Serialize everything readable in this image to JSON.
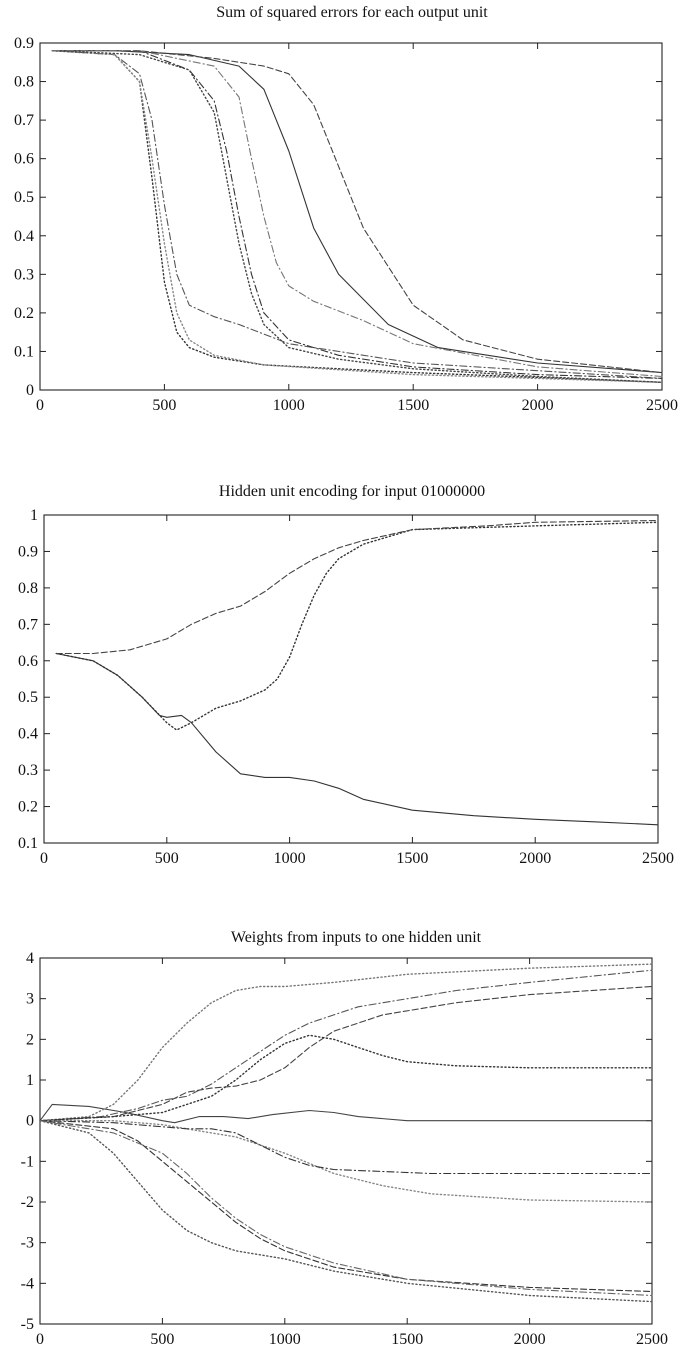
{
  "chart_data": [
    {
      "type": "line",
      "title": "Sum of squared errors for each output unit",
      "xlim": [
        0,
        2500
      ],
      "ylim": [
        0,
        0.9
      ],
      "xticks": [
        0,
        500,
        1000,
        1500,
        2000,
        2500
      ],
      "yticks": [
        0,
        0.1,
        0.2,
        0.3,
        0.4,
        0.5,
        0.6,
        0.7,
        0.8,
        0.9
      ],
      "xtick_labels": [
        "0",
        "500",
        "1000",
        "1500",
        "2000",
        "2500"
      ],
      "ytick_labels": [
        "0",
        "0.1",
        "0.2",
        "0.3",
        "0.4",
        "0.5",
        "0.6",
        "0.7",
        "0.8",
        "0.9"
      ],
      "series": [
        {
          "style": "solid",
          "color": "#333333",
          "x": [
            50,
            300,
            600,
            800,
            900,
            1000,
            1100,
            1200,
            1400,
            1600,
            2000,
            2500
          ],
          "y": [
            0.88,
            0.88,
            0.87,
            0.84,
            0.78,
            0.62,
            0.42,
            0.3,
            0.17,
            0.11,
            0.07,
            0.045
          ]
        },
        {
          "style": "dashed",
          "color": "#444444",
          "x": [
            50,
            400,
            700,
            900,
            1000,
            1100,
            1200,
            1300,
            1500,
            1700,
            2000,
            2500
          ],
          "y": [
            0.88,
            0.88,
            0.86,
            0.84,
            0.82,
            0.74,
            0.58,
            0.42,
            0.22,
            0.13,
            0.08,
            0.045
          ]
        },
        {
          "style": "dotted",
          "color": "#333333",
          "x": [
            50,
            300,
            400,
            450,
            500,
            550,
            600,
            700,
            900,
            1500,
            2500
          ],
          "y": [
            0.88,
            0.87,
            0.8,
            0.55,
            0.28,
            0.15,
            0.11,
            0.085,
            0.065,
            0.045,
            0.02
          ]
        },
        {
          "style": "dashdot",
          "color": "#555555",
          "x": [
            50,
            300,
            400,
            450,
            500,
            550,
            600,
            700,
            800,
            1000,
            1500,
            2500
          ],
          "y": [
            0.88,
            0.87,
            0.82,
            0.7,
            0.48,
            0.3,
            0.22,
            0.19,
            0.17,
            0.12,
            0.07,
            0.03
          ]
        },
        {
          "style": "dotted",
          "color": "#888888",
          "x": [
            50,
            300,
            400,
            450,
            500,
            550,
            600,
            700,
            900,
            1500,
            2500
          ],
          "y": [
            0.88,
            0.87,
            0.8,
            0.6,
            0.38,
            0.2,
            0.13,
            0.09,
            0.065,
            0.04,
            0.02
          ]
        },
        {
          "style": "dashdot",
          "color": "#333333",
          "x": [
            50,
            400,
            600,
            700,
            750,
            800,
            850,
            900,
            1000,
            1200,
            1500,
            2000,
            2500
          ],
          "y": [
            0.88,
            0.88,
            0.83,
            0.75,
            0.62,
            0.45,
            0.3,
            0.2,
            0.13,
            0.09,
            0.06,
            0.04,
            0.03
          ]
        },
        {
          "style": "dotted",
          "color": "#444444",
          "x": [
            50,
            400,
            600,
            700,
            750,
            800,
            850,
            900,
            1000,
            1200,
            1500,
            2000,
            2500
          ],
          "y": [
            0.88,
            0.87,
            0.83,
            0.72,
            0.55,
            0.38,
            0.25,
            0.17,
            0.11,
            0.08,
            0.055,
            0.035,
            0.02
          ]
        },
        {
          "style": "dashdot",
          "color": "#777777",
          "x": [
            50,
            400,
            700,
            800,
            850,
            900,
            950,
            1000,
            1100,
            1300,
            1500,
            2000,
            2500
          ],
          "y": [
            0.88,
            0.88,
            0.84,
            0.76,
            0.6,
            0.45,
            0.33,
            0.27,
            0.23,
            0.18,
            0.12,
            0.06,
            0.035
          ]
        }
      ]
    },
    {
      "type": "line",
      "title": "Hidden unit encoding for input 01000000",
      "xlim": [
        0,
        2500
      ],
      "ylim": [
        0.1,
        1
      ],
      "xticks": [
        0,
        500,
        1000,
        1500,
        2000,
        2500
      ],
      "yticks": [
        0.1,
        0.2,
        0.3,
        0.4,
        0.5,
        0.6,
        0.7,
        0.8,
        0.9,
        1
      ],
      "xtick_labels": [
        "0",
        "500",
        "1000",
        "1500",
        "2000",
        "2500"
      ],
      "ytick_labels": [
        "0.1",
        "0.2",
        "0.3",
        "0.4",
        "0.5",
        "0.6",
        "0.7",
        "0.8",
        "0.9",
        "1"
      ],
      "series": [
        {
          "style": "solid",
          "color": "#333333",
          "x": [
            50,
            200,
            300,
            400,
            470,
            500,
            560,
            600,
            700,
            800,
            900,
            1000,
            1100,
            1200,
            1300,
            1500,
            1750,
            2000,
            2250,
            2500
          ],
          "y": [
            0.62,
            0.6,
            0.56,
            0.5,
            0.45,
            0.445,
            0.45,
            0.43,
            0.35,
            0.29,
            0.28,
            0.28,
            0.27,
            0.25,
            0.22,
            0.19,
            0.175,
            0.165,
            0.158,
            0.15
          ]
        },
        {
          "style": "dotted",
          "color": "#333333",
          "x": [
            50,
            200,
            300,
            400,
            500,
            540,
            600,
            700,
            800,
            900,
            950,
            1000,
            1050,
            1100,
            1150,
            1200,
            1300,
            1500,
            2000,
            2500
          ],
          "y": [
            0.62,
            0.6,
            0.56,
            0.5,
            0.43,
            0.41,
            0.43,
            0.47,
            0.49,
            0.52,
            0.55,
            0.61,
            0.7,
            0.78,
            0.84,
            0.88,
            0.92,
            0.96,
            0.97,
            0.98
          ]
        },
        {
          "style": "dashed",
          "color": "#444444",
          "x": [
            50,
            200,
            350,
            500,
            600,
            700,
            800,
            900,
            1000,
            1100,
            1200,
            1300,
            1500,
            1800,
            2000,
            2500
          ],
          "y": [
            0.62,
            0.62,
            0.63,
            0.66,
            0.7,
            0.73,
            0.75,
            0.79,
            0.84,
            0.88,
            0.91,
            0.93,
            0.96,
            0.97,
            0.98,
            0.985
          ]
        }
      ]
    },
    {
      "type": "line",
      "title": "Weights from inputs to one hidden unit",
      "xlim": [
        0,
        2500
      ],
      "ylim": [
        -5,
        4
      ],
      "xticks": [
        0,
        500,
        1000,
        1500,
        2000,
        2500
      ],
      "yticks": [
        -5,
        -4,
        -3,
        -2,
        -1,
        0,
        1,
        2,
        3,
        4
      ],
      "xtick_labels": [
        "0",
        "500",
        "1000",
        "1500",
        "2000",
        "2500"
      ],
      "ytick_labels": [
        "-5",
        "-4",
        "-3",
        "-2",
        "-1",
        "0",
        "1",
        "2",
        "3",
        "4"
      ],
      "series": [
        {
          "style": "solid",
          "color": "#444444",
          "x": [
            0,
            50,
            200,
            350,
            500,
            550,
            650,
            750,
            850,
            950,
            1100,
            1200,
            1300,
            1500,
            2000,
            2500
          ],
          "y": [
            0,
            0.4,
            0.35,
            0.2,
            0,
            -0.05,
            0.1,
            0.1,
            0.05,
            0.15,
            0.25,
            0.2,
            0.1,
            0,
            0,
            0
          ]
        },
        {
          "style": "dotted",
          "color": "#777777",
          "x": [
            0,
            200,
            300,
            400,
            500,
            600,
            700,
            800,
            900,
            1000,
            1200,
            1500,
            2000,
            2500
          ],
          "y": [
            0,
            0.1,
            0.4,
            1.0,
            1.8,
            2.4,
            2.9,
            3.2,
            3.3,
            3.3,
            3.4,
            3.6,
            3.75,
            3.85
          ]
        },
        {
          "style": "dashdot",
          "color": "#555555",
          "x": [
            0,
            250,
            400,
            500,
            600,
            700,
            800,
            900,
            1000,
            1100,
            1200,
            1300,
            1500,
            1700,
            2000,
            2500
          ],
          "y": [
            0,
            0.1,
            0.3,
            0.5,
            0.6,
            0.9,
            1.3,
            1.7,
            2.1,
            2.4,
            2.6,
            2.8,
            3.0,
            3.2,
            3.4,
            3.7
          ]
        },
        {
          "style": "dashed",
          "color": "#444444",
          "x": [
            0,
            300,
            500,
            600,
            700,
            800,
            900,
            1000,
            1100,
            1200,
            1400,
            1700,
            2000,
            2500
          ],
          "y": [
            0,
            0.1,
            0.4,
            0.7,
            0.8,
            0.85,
            1.0,
            1.3,
            1.8,
            2.2,
            2.6,
            2.9,
            3.1,
            3.3
          ]
        },
        {
          "style": "dotted",
          "color": "#333333",
          "x": [
            0,
            300,
            500,
            700,
            800,
            900,
            1000,
            1100,
            1200,
            1300,
            1400,
            1500,
            1700,
            2000,
            2500
          ],
          "y": [
            0,
            0.1,
            0.2,
            0.6,
            1.0,
            1.5,
            1.9,
            2.1,
            2.0,
            1.8,
            1.6,
            1.45,
            1.35,
            1.3,
            1.3
          ]
        },
        {
          "style": "dotted",
          "color": "#888888",
          "x": [
            0,
            300,
            500,
            600,
            700,
            800,
            1000,
            1200,
            1400,
            1600,
            2000,
            2500
          ],
          "y": [
            0,
            0,
            -0.1,
            -0.2,
            -0.3,
            -0.4,
            -0.8,
            -1.3,
            -1.6,
            -1.8,
            -1.95,
            -2.0
          ]
        },
        {
          "style": "dashdot",
          "color": "#333333",
          "x": [
            0,
            300,
            500,
            600,
            700,
            800,
            900,
            1000,
            1100,
            1200,
            1400,
            1600,
            2000,
            2500
          ],
          "y": [
            0,
            -0.05,
            -0.15,
            -0.2,
            -0.2,
            -0.3,
            -0.6,
            -0.9,
            -1.1,
            -1.2,
            -1.25,
            -1.3,
            -1.3,
            -1.3
          ]
        },
        {
          "style": "dashed",
          "color": "#333333",
          "x": [
            0,
            300,
            400,
            500,
            600,
            700,
            800,
            900,
            1000,
            1200,
            1500,
            2000,
            2500
          ],
          "y": [
            0,
            -0.2,
            -0.5,
            -1.0,
            -1.5,
            -2.0,
            -2.5,
            -2.9,
            -3.2,
            -3.6,
            -3.9,
            -4.1,
            -4.2
          ]
        },
        {
          "style": "dotted",
          "color": "#555555",
          "x": [
            0,
            200,
            300,
            400,
            500,
            600,
            700,
            800,
            1000,
            1200,
            1500,
            2000,
            2500
          ],
          "y": [
            0,
            -0.3,
            -0.8,
            -1.5,
            -2.2,
            -2.7,
            -3.0,
            -3.2,
            -3.4,
            -3.7,
            -4.0,
            -4.3,
            -4.45
          ]
        },
        {
          "style": "dashdot",
          "color": "#666666",
          "x": [
            0,
            300,
            500,
            600,
            700,
            800,
            900,
            1000,
            1200,
            1500,
            2000,
            2500
          ],
          "y": [
            0,
            -0.3,
            -0.8,
            -1.3,
            -1.9,
            -2.4,
            -2.8,
            -3.1,
            -3.5,
            -3.9,
            -4.15,
            -4.3
          ]
        }
      ]
    }
  ]
}
